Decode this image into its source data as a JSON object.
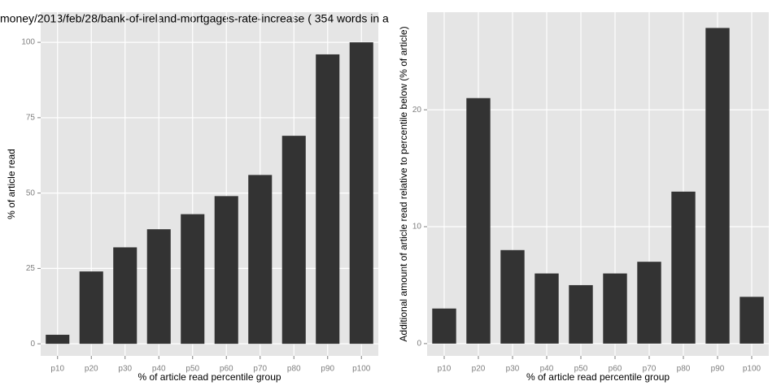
{
  "chart_data": [
    {
      "type": "bar",
      "title": "money/2013/feb/28/bank-of-ireland-mortgages-rate-increase ( 354 words in a",
      "x_label": "% of article read percentile group",
      "y_label": "% of article read",
      "categories": [
        "p10",
        "p20",
        "p30",
        "p40",
        "p50",
        "p60",
        "p70",
        "p80",
        "p90",
        "p100"
      ],
      "values": [
        3,
        24,
        32,
        38,
        43,
        49,
        56,
        69,
        96,
        100
      ],
      "color": "#333333",
      "ylim": [
        -4,
        110
      ],
      "yticks": [
        0,
        25,
        50,
        75,
        100
      ],
      "grid": true
    },
    {
      "type": "bar",
      "x_label": "% of article read percentile group",
      "y_label": "Additional amount of article read relative to percentile below (% of article)",
      "categories": [
        "p10",
        "p20",
        "p30",
        "p40",
        "p50",
        "p60",
        "p70",
        "p80",
        "p90",
        "p100"
      ],
      "values": [
        3,
        21,
        8,
        6,
        5,
        6,
        7,
        13,
        27,
        4
      ],
      "color": "#333333",
      "ylim": [
        -1.05,
        28.35
      ],
      "yticks": [
        0,
        10,
        20
      ],
      "grid": true
    }
  ]
}
